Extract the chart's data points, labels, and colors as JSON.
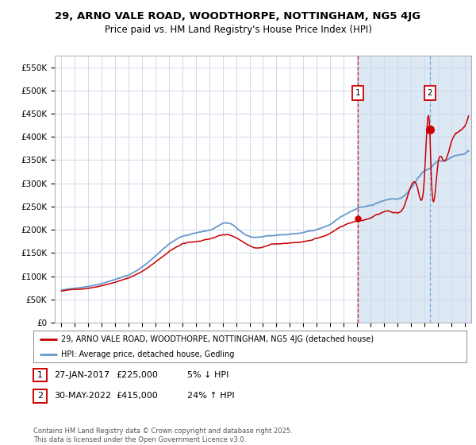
{
  "title1": "29, ARNO VALE ROAD, WOODTHORPE, NOTTINGHAM, NG5 4JG",
  "title2": "Price paid vs. HM Land Registry's House Price Index (HPI)",
  "ylabel_ticks": [
    "£0",
    "£50K",
    "£100K",
    "£150K",
    "£200K",
    "£250K",
    "£300K",
    "£350K",
    "£400K",
    "£450K",
    "£500K",
    "£550K"
  ],
  "ytick_values": [
    0,
    50000,
    100000,
    150000,
    200000,
    250000,
    300000,
    350000,
    400000,
    450000,
    500000,
    550000
  ],
  "ylim": [
    0,
    575000
  ],
  "xlim_start": 1994.5,
  "xlim_end": 2025.5,
  "bg_color": "#ffffff",
  "plot_bg_color": "#ffffff",
  "grid_color": "#d0d8e8",
  "legend_line1": "29, ARNO VALE ROAD, WOODTHORPE, NOTTINGHAM, NG5 4JG (detached house)",
  "legend_line2": "HPI: Average price, detached house, Gedling",
  "sale1_date": "27-JAN-2017",
  "sale1_price": "£225,000",
  "sale1_change": "5% ↓ HPI",
  "sale1_x": 2017.07,
  "sale1_y": 225000,
  "sale2_date": "30-MAY-2022",
  "sale2_price": "£415,000",
  "sale2_change": "24% ↑ HPI",
  "sale2_x": 2022.42,
  "sale2_y": 415000,
  "red_color": "#cc0000",
  "blue_color": "#6699cc",
  "shade_color": "#dde8f5",
  "footer": "Contains HM Land Registry data © Crown copyright and database right 2025.\nThis data is licensed under the Open Government Licence v3.0."
}
